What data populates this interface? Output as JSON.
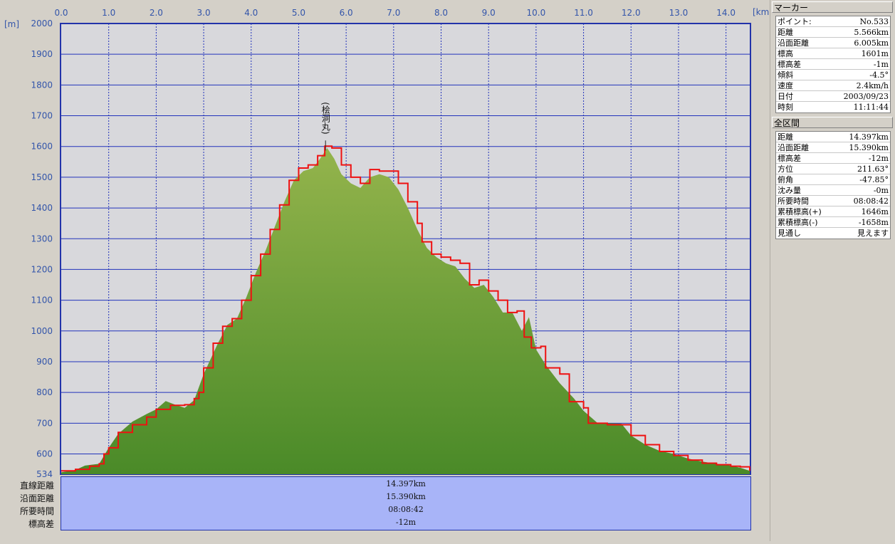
{
  "x_unit": "[km]",
  "y_unit": "[m]",
  "x_ticks": [
    "0.0",
    "1.0",
    "2.0",
    "3.0",
    "4.0",
    "5.0",
    "6.0",
    "7.0",
    "8.0",
    "9.0",
    "10.0",
    "11.0",
    "12.0",
    "13.0",
    "14.0"
  ],
  "y_ticks": [
    "2000",
    "1900",
    "1800",
    "1700",
    "1600",
    "1500",
    "1400",
    "1300",
    "1200",
    "1100",
    "1000",
    "900",
    "800",
    "700",
    "600",
    "534"
  ],
  "peak_label": "(桧洞丸)",
  "bottom": {
    "rows": [
      {
        "label": "直線距離",
        "value": "14.397km"
      },
      {
        "label": "沿面距離",
        "value": "15.390km"
      },
      {
        "label": "所要時間",
        "value": "08:08:42"
      },
      {
        "label": "標高差",
        "value": "-12m"
      }
    ]
  },
  "marker": {
    "title": "マーカー",
    "rows": [
      {
        "key": "ポイント:",
        "value": "No.533"
      },
      {
        "key": "距離",
        "value": "5.566km"
      },
      {
        "key": "沿面距離",
        "value": "6.005km"
      },
      {
        "key": "標高",
        "value": "1601m"
      },
      {
        "key": "標高差",
        "value": "-1m"
      },
      {
        "key": "傾斜",
        "value": "-4.5°"
      },
      {
        "key": "速度",
        "value": "2.4km/h"
      },
      {
        "key": "日付",
        "value": "2003/09/23"
      },
      {
        "key": "時刻",
        "value": "11:11:44"
      }
    ]
  },
  "section": {
    "title": "全区間",
    "rows": [
      {
        "key": "距離",
        "value": "14.397km"
      },
      {
        "key": "沿面距離",
        "value": "15.390km"
      },
      {
        "key": "標高差",
        "value": "-12m"
      },
      {
        "key": "方位",
        "value": "211.63°"
      },
      {
        "key": "俯角",
        "value": "-47.85°"
      },
      {
        "key": "沈み量",
        "value": "-0m"
      },
      {
        "key": "所要時間",
        "value": "08:08:42"
      },
      {
        "key": "累積標高(+)",
        "value": "1646m"
      },
      {
        "key": "累積標高(-)",
        "value": "-1658m"
      },
      {
        "key": "見通し",
        "value": "見えます"
      }
    ]
  },
  "colors": {
    "plot_bg": "#d8d8dc",
    "grid": "#2233bb",
    "terrain_top": "#8fb04a",
    "terrain_bottom": "#4a8a28",
    "track": "#ee1111",
    "bottom_panel": "#a8b4f8"
  },
  "chart_data": {
    "type": "area",
    "xlabel": "[km]",
    "ylabel": "[m]",
    "xlim": [
      0,
      14.5
    ],
    "ylim": [
      534,
      2000
    ],
    "grid": true,
    "marker_point": {
      "x": 5.566,
      "y": 1601
    },
    "series": [
      {
        "type": "area",
        "points": [
          [
            0.0,
            540
          ],
          [
            0.3,
            548
          ],
          [
            0.5,
            562
          ],
          [
            0.8,
            568
          ],
          [
            1.0,
            620
          ],
          [
            1.2,
            665
          ],
          [
            1.5,
            705
          ],
          [
            1.8,
            730
          ],
          [
            2.0,
            745
          ],
          [
            2.2,
            772
          ],
          [
            2.4,
            760
          ],
          [
            2.6,
            750
          ],
          [
            2.8,
            775
          ],
          [
            3.0,
            860
          ],
          [
            3.3,
            960
          ],
          [
            3.5,
            1020
          ],
          [
            3.7,
            1040
          ],
          [
            3.9,
            1110
          ],
          [
            4.1,
            1190
          ],
          [
            4.3,
            1260
          ],
          [
            4.5,
            1340
          ],
          [
            4.7,
            1420
          ],
          [
            4.9,
            1490
          ],
          [
            5.1,
            1520
          ],
          [
            5.3,
            1530
          ],
          [
            5.45,
            1560
          ],
          [
            5.6,
            1595
          ],
          [
            5.75,
            1560
          ],
          [
            5.9,
            1510
          ],
          [
            6.1,
            1480
          ],
          [
            6.3,
            1465
          ],
          [
            6.5,
            1500
          ],
          [
            6.7,
            1510
          ],
          [
            6.9,
            1500
          ],
          [
            7.1,
            1460
          ],
          [
            7.3,
            1400
          ],
          [
            7.5,
            1330
          ],
          [
            7.7,
            1270
          ],
          [
            7.9,
            1240
          ],
          [
            8.1,
            1220
          ],
          [
            8.3,
            1210
          ],
          [
            8.5,
            1170
          ],
          [
            8.7,
            1140
          ],
          [
            8.9,
            1150
          ],
          [
            9.1,
            1110
          ],
          [
            9.3,
            1060
          ],
          [
            9.5,
            1060
          ],
          [
            9.7,
            1000
          ],
          [
            9.85,
            1045
          ],
          [
            10.0,
            940
          ],
          [
            10.2,
            890
          ],
          [
            10.5,
            830
          ],
          [
            10.8,
            780
          ],
          [
            11.0,
            740
          ],
          [
            11.3,
            700
          ],
          [
            11.5,
            700
          ],
          [
            11.8,
            698
          ],
          [
            12.0,
            660
          ],
          [
            12.3,
            630
          ],
          [
            12.6,
            610
          ],
          [
            12.9,
            600
          ],
          [
            13.2,
            585
          ],
          [
            13.5,
            575
          ],
          [
            13.8,
            568
          ],
          [
            14.1,
            562
          ],
          [
            14.3,
            555
          ],
          [
            14.5,
            545
          ]
        ]
      },
      {
        "type": "line",
        "points": [
          [
            0.0,
            545
          ],
          [
            0.3,
            550
          ],
          [
            0.6,
            560
          ],
          [
            0.8,
            568
          ],
          [
            0.9,
            600
          ],
          [
            1.0,
            620
          ],
          [
            1.2,
            670
          ],
          [
            1.5,
            695
          ],
          [
            1.8,
            720
          ],
          [
            2.0,
            745
          ],
          [
            2.3,
            758
          ],
          [
            2.6,
            760
          ],
          [
            2.8,
            780
          ],
          [
            2.9,
            800
          ],
          [
            3.0,
            880
          ],
          [
            3.2,
            960
          ],
          [
            3.4,
            1015
          ],
          [
            3.6,
            1040
          ],
          [
            3.8,
            1100
          ],
          [
            4.0,
            1180
          ],
          [
            4.2,
            1250
          ],
          [
            4.4,
            1330
          ],
          [
            4.6,
            1410
          ],
          [
            4.8,
            1490
          ],
          [
            5.0,
            1530
          ],
          [
            5.2,
            1540
          ],
          [
            5.4,
            1570
          ],
          [
            5.55,
            1601
          ],
          [
            5.7,
            1595
          ],
          [
            5.9,
            1540
          ],
          [
            6.1,
            1500
          ],
          [
            6.3,
            1480
          ],
          [
            6.5,
            1525
          ],
          [
            6.7,
            1520
          ],
          [
            6.9,
            1520
          ],
          [
            7.1,
            1480
          ],
          [
            7.3,
            1420
          ],
          [
            7.5,
            1350
          ],
          [
            7.6,
            1290
          ],
          [
            7.8,
            1250
          ],
          [
            8.0,
            1240
          ],
          [
            8.2,
            1230
          ],
          [
            8.4,
            1220
          ],
          [
            8.6,
            1150
          ],
          [
            8.8,
            1165
          ],
          [
            9.0,
            1130
          ],
          [
            9.2,
            1100
          ],
          [
            9.4,
            1060
          ],
          [
            9.6,
            1065
          ],
          [
            9.75,
            980
          ],
          [
            9.9,
            945
          ],
          [
            10.1,
            950
          ],
          [
            10.2,
            880
          ],
          [
            10.5,
            860
          ],
          [
            10.7,
            770
          ],
          [
            11.0,
            750
          ],
          [
            11.1,
            700
          ],
          [
            11.5,
            695
          ],
          [
            11.9,
            695
          ],
          [
            12.0,
            660
          ],
          [
            12.3,
            630
          ],
          [
            12.6,
            608
          ],
          [
            12.9,
            595
          ],
          [
            13.2,
            580
          ],
          [
            13.5,
            570
          ],
          [
            13.8,
            565
          ],
          [
            14.1,
            560
          ],
          [
            14.3,
            558
          ],
          [
            14.5,
            545
          ]
        ]
      }
    ]
  }
}
